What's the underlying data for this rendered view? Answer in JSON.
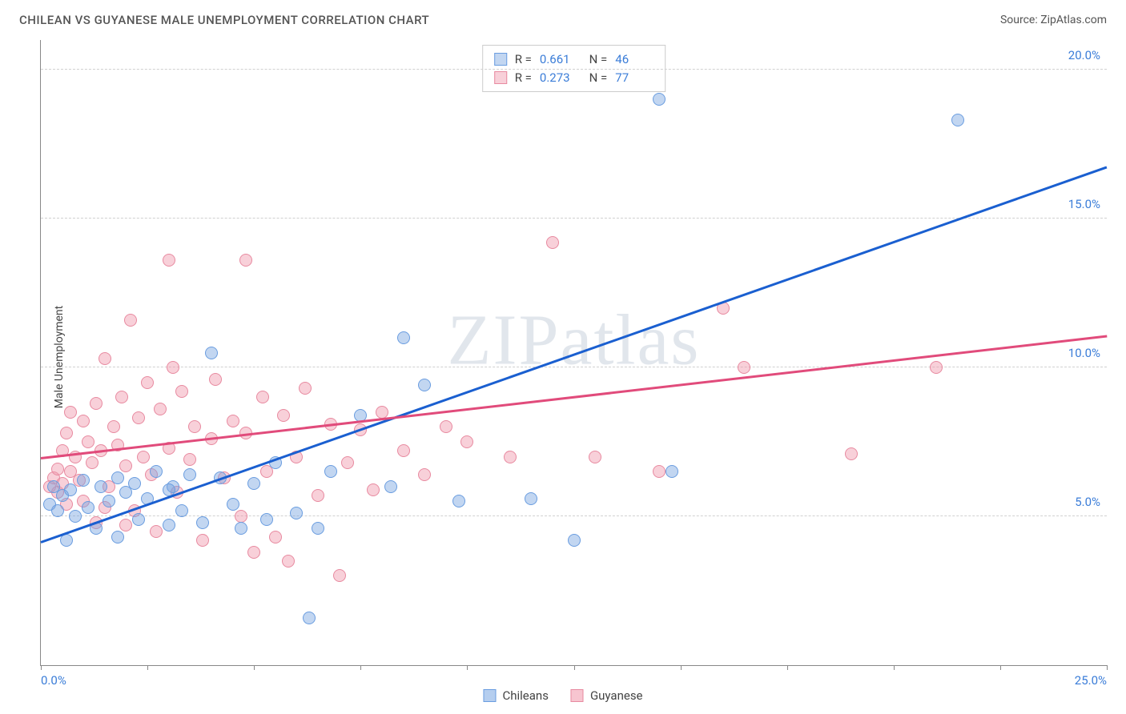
{
  "title": "CHILEAN VS GUYANESE MALE UNEMPLOYMENT CORRELATION CHART",
  "source": "Source: ZipAtlas.com",
  "ylabel": "Male Unemployment",
  "watermark": "ZIPatlas",
  "chart": {
    "type": "scatter",
    "xlim": [
      0,
      25
    ],
    "ylim": [
      0,
      21
    ],
    "xticks": [
      0,
      2.5,
      5,
      7.5,
      10,
      12.5,
      15,
      17.5,
      20,
      22.5,
      25
    ],
    "xtick_labels": {
      "0": "0.0%",
      "25": "25.0%"
    },
    "yticks": [
      5,
      10,
      15,
      20
    ],
    "ytick_labels": {
      "5": "5.0%",
      "10": "10.0%",
      "15": "15.0%",
      "20": "20.0%"
    },
    "grid_color": "#d8d8d8",
    "axis_color": "#888888",
    "background": "#ffffff",
    "tick_label_color": "#3b7dd8",
    "point_radius": 8,
    "series": [
      {
        "name": "Chileans",
        "fill": "rgba(120,165,225,0.45)",
        "stroke": "#6a9de0",
        "trend_color": "#1a5fd0",
        "r": 0.661,
        "n": 46,
        "trend": {
          "x1": 0,
          "y1": 4.1,
          "x2": 25,
          "y2": 16.7
        },
        "points": [
          [
            0.2,
            5.4
          ],
          [
            0.3,
            6.0
          ],
          [
            0.4,
            5.2
          ],
          [
            0.5,
            5.7
          ],
          [
            0.6,
            4.2
          ],
          [
            0.7,
            5.9
          ],
          [
            0.8,
            5.0
          ],
          [
            1.0,
            6.2
          ],
          [
            1.1,
            5.3
          ],
          [
            1.3,
            4.6
          ],
          [
            1.4,
            6.0
          ],
          [
            1.6,
            5.5
          ],
          [
            1.8,
            4.3
          ],
          [
            1.8,
            6.3
          ],
          [
            2.0,
            5.8
          ],
          [
            2.2,
            6.1
          ],
          [
            2.3,
            4.9
          ],
          [
            2.5,
            5.6
          ],
          [
            2.7,
            6.5
          ],
          [
            3.0,
            4.7
          ],
          [
            3.1,
            6.0
          ],
          [
            3.3,
            5.2
          ],
          [
            3.5,
            6.4
          ],
          [
            3.8,
            4.8
          ],
          [
            4.0,
            10.5
          ],
          [
            4.2,
            6.3
          ],
          [
            4.5,
            5.4
          ],
          [
            4.7,
            4.6
          ],
          [
            5.0,
            6.1
          ],
          [
            5.3,
            4.9
          ],
          [
            5.5,
            6.8
          ],
          [
            6.0,
            5.1
          ],
          [
            6.3,
            1.6
          ],
          [
            6.5,
            4.6
          ],
          [
            6.8,
            6.5
          ],
          [
            7.5,
            8.4
          ],
          [
            8.5,
            11.0
          ],
          [
            9.0,
            9.4
          ],
          [
            9.8,
            5.5
          ],
          [
            11.5,
            5.6
          ],
          [
            12.5,
            4.2
          ],
          [
            14.5,
            19.0
          ],
          [
            14.8,
            6.5
          ],
          [
            21.5,
            18.3
          ],
          [
            8.2,
            6.0
          ],
          [
            3.0,
            5.9
          ]
        ]
      },
      {
        "name": "Guyanese",
        "fill": "rgba(240,150,170,0.45)",
        "stroke": "#e88aa0",
        "trend_color": "#e14b7b",
        "r": 0.273,
        "n": 77,
        "trend": {
          "x1": 0,
          "y1": 6.9,
          "x2": 25,
          "y2": 11.0
        },
        "points": [
          [
            0.2,
            6.0
          ],
          [
            0.3,
            6.3
          ],
          [
            0.4,
            5.8
          ],
          [
            0.4,
            6.6
          ],
          [
            0.5,
            7.2
          ],
          [
            0.5,
            6.1
          ],
          [
            0.6,
            7.8
          ],
          [
            0.7,
            6.5
          ],
          [
            0.7,
            8.5
          ],
          [
            0.8,
            7.0
          ],
          [
            0.9,
            6.2
          ],
          [
            1.0,
            8.2
          ],
          [
            1.0,
            5.5
          ],
          [
            1.1,
            7.5
          ],
          [
            1.2,
            6.8
          ],
          [
            1.3,
            8.8
          ],
          [
            1.3,
            4.8
          ],
          [
            1.4,
            7.2
          ],
          [
            1.5,
            10.3
          ],
          [
            1.6,
            6.0
          ],
          [
            1.7,
            8.0
          ],
          [
            1.8,
            7.4
          ],
          [
            1.9,
            9.0
          ],
          [
            2.0,
            6.7
          ],
          [
            2.1,
            11.6
          ],
          [
            2.2,
            5.2
          ],
          [
            2.3,
            8.3
          ],
          [
            2.4,
            7.0
          ],
          [
            2.5,
            9.5
          ],
          [
            2.6,
            6.4
          ],
          [
            2.7,
            4.5
          ],
          [
            2.8,
            8.6
          ],
          [
            3.0,
            7.3
          ],
          [
            3.1,
            10.0
          ],
          [
            3.2,
            5.8
          ],
          [
            3.3,
            9.2
          ],
          [
            3.5,
            6.9
          ],
          [
            3.6,
            8.0
          ],
          [
            3.8,
            4.2
          ],
          [
            4.0,
            7.6
          ],
          [
            4.1,
            9.6
          ],
          [
            4.3,
            6.3
          ],
          [
            4.5,
            8.2
          ],
          [
            4.7,
            5.0
          ],
          [
            4.8,
            7.8
          ],
          [
            5.0,
            3.8
          ],
          [
            5.2,
            9.0
          ],
          [
            5.3,
            6.5
          ],
          [
            5.5,
            4.3
          ],
          [
            5.7,
            8.4
          ],
          [
            5.8,
            3.5
          ],
          [
            6.0,
            7.0
          ],
          [
            6.2,
            9.3
          ],
          [
            6.5,
            5.7
          ],
          [
            6.8,
            8.1
          ],
          [
            7.0,
            3.0
          ],
          [
            7.2,
            6.8
          ],
          [
            7.5,
            7.9
          ],
          [
            7.8,
            5.9
          ],
          [
            8.0,
            8.5
          ],
          [
            8.5,
            7.2
          ],
          [
            9.0,
            6.4
          ],
          [
            9.5,
            8.0
          ],
          [
            10.0,
            7.5
          ],
          [
            11.0,
            7.0
          ],
          [
            12.0,
            14.2
          ],
          [
            13.0,
            7.0
          ],
          [
            14.5,
            6.5
          ],
          [
            16.0,
            12.0
          ],
          [
            16.5,
            10.0
          ],
          [
            19.0,
            7.1
          ],
          [
            21.0,
            10.0
          ],
          [
            3.0,
            13.6
          ],
          [
            4.8,
            13.6
          ],
          [
            2.0,
            4.7
          ],
          [
            1.5,
            5.3
          ],
          [
            0.6,
            5.4
          ]
        ]
      }
    ]
  },
  "legend": {
    "items": [
      {
        "label": "Chileans",
        "fill": "rgba(120,165,225,0.55)",
        "stroke": "#6a9de0"
      },
      {
        "label": "Guyanese",
        "fill": "rgba(240,150,170,0.55)",
        "stroke": "#e88aa0"
      }
    ]
  }
}
